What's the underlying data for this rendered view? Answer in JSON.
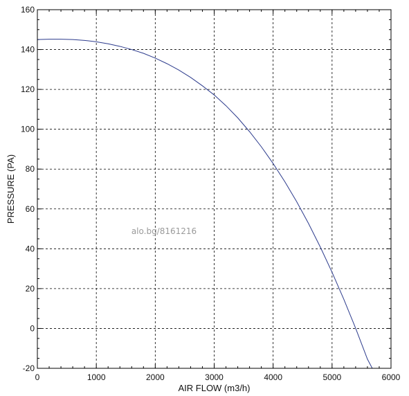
{
  "chart_data": {
    "type": "line",
    "title": "",
    "xlabel": "AIR FLOW (m3/h)",
    "ylabel": "PRESSURE (PA)",
    "xlim": [
      0,
      6000
    ],
    "ylim": [
      -20,
      160
    ],
    "xticks": [
      0,
      1000,
      2000,
      3000,
      4000,
      5000,
      6000
    ],
    "yticks": [
      -20,
      0,
      20,
      40,
      60,
      80,
      100,
      120,
      140,
      160
    ],
    "x_tick_labels": [
      "0",
      "1000",
      "2000",
      "3000",
      "4000",
      "5000",
      "6000"
    ],
    "y_tick_labels": [
      "-20",
      "0",
      "20",
      "40",
      "60",
      "80",
      "100",
      "120",
      "140",
      "160"
    ],
    "grid": true,
    "grid_style": "dashed",
    "legend": "none",
    "series": [
      {
        "color": "#2b3a8c",
        "x": [
          0,
          200,
          400,
          600,
          800,
          1000,
          1200,
          1400,
          1600,
          1800,
          2000,
          2200,
          2400,
          2600,
          2800,
          3000,
          3200,
          3400,
          3600,
          3800,
          4000,
          4200,
          4400,
          4600,
          4800,
          5000,
          5200,
          5400,
          5600,
          5700
        ],
        "y": [
          145,
          145.2,
          145.2,
          145,
          144.6,
          143.9,
          142.9,
          141.6,
          140,
          138.1,
          135.7,
          132.9,
          129.7,
          126,
          121.8,
          117.2,
          111.8,
          105.7,
          98.8,
          91.2,
          82.8,
          73.6,
          63.6,
          52.7,
          40.9,
          28.2,
          14.6,
          0.1,
          -15.4,
          -21
        ]
      }
    ]
  },
  "watermark": "alo.bg/8161216"
}
